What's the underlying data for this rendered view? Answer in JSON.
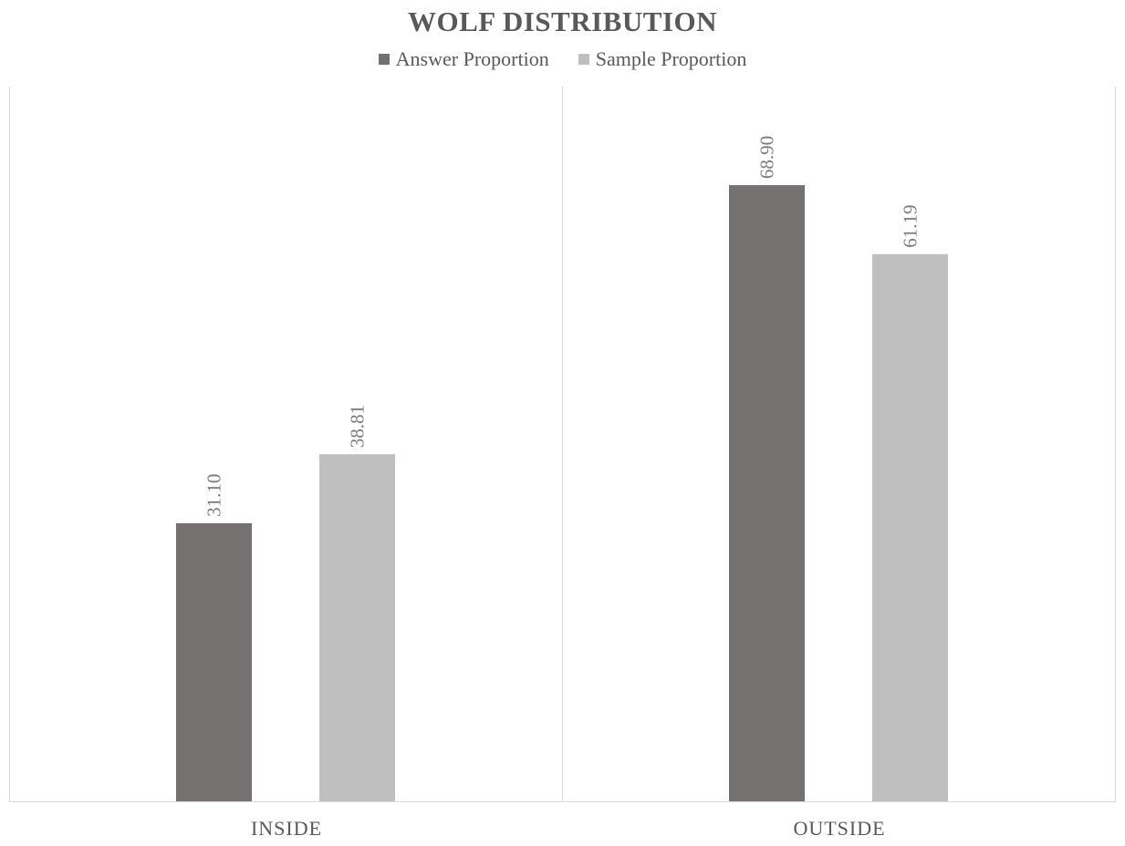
{
  "chart_data": {
    "type": "bar",
    "title": "WOLF DISTRIBUTION",
    "categories": [
      "INSIDE",
      "OUTSIDE"
    ],
    "series": [
      {
        "name": "Answer Proportion",
        "values": [
          31.1,
          68.9
        ],
        "labels": [
          "31.10",
          "68.90"
        ],
        "color": "#767171"
      },
      {
        "name": "Sample Proportion",
        "values": [
          38.81,
          61.19
        ],
        "labels": [
          "38.81",
          "61.19"
        ],
        "color": "#bfbfbf"
      }
    ],
    "ylim": [
      0,
      80
    ],
    "xlabel": "",
    "ylabel": "",
    "grid": false,
    "legend_position": "top",
    "data_labels": "rotated vertical above bars"
  }
}
